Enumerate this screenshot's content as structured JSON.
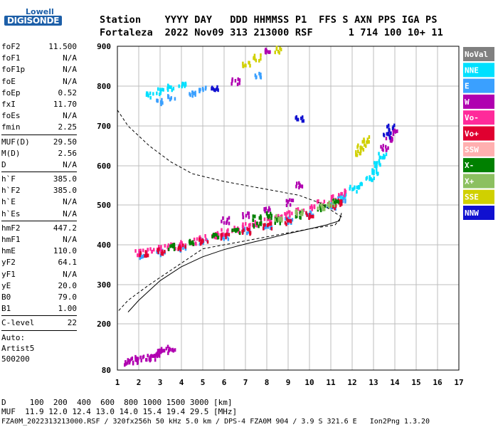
{
  "logo": {
    "line1": "Lowell",
    "line2": "DIGISONDE"
  },
  "header": {
    "line1": "Station    YYYY DAY   DDD HHMMSS P1  FFS S AXN PPS IGA PS",
    "line2": "Fortaleza  2022 Nov09 313 213000 RSF      1 714 100 10+ 11"
  },
  "params": [
    [
      {
        "k": "foF2",
        "v": "11.500"
      },
      {
        "k": "foF1",
        "v": "N/A"
      },
      {
        "k": "foF1p",
        "v": "N/A"
      },
      {
        "k": "foE",
        "v": "N/A"
      },
      {
        "k": "foEp",
        "v": "0.52"
      },
      {
        "k": "fxI",
        "v": "11.70"
      },
      {
        "k": "foEs",
        "v": "N/A"
      },
      {
        "k": "fmin",
        "v": "2.25"
      }
    ],
    [
      {
        "k": "MUF(D)",
        "v": "29.50"
      },
      {
        "k": "M(D)",
        "v": "2.56"
      },
      {
        "k": "D",
        "v": "N/A"
      }
    ],
    [
      {
        "k": "h`F",
        "v": "385.0"
      },
      {
        "k": "h`F2",
        "v": "385.0"
      },
      {
        "k": "h`E",
        "v": "N/A"
      },
      {
        "k": "h`Es",
        "v": "N/A"
      }
    ],
    [
      {
        "k": "hmF2",
        "v": "447.2"
      },
      {
        "k": "hmF1",
        "v": "N/A"
      },
      {
        "k": "hmE",
        "v": "110.0"
      },
      {
        "k": "yF2",
        "v": "64.1"
      },
      {
        "k": "yF1",
        "v": "N/A"
      },
      {
        "k": "yE",
        "v": "20.0"
      },
      {
        "k": "B0",
        "v": "79.0"
      },
      {
        "k": "B1",
        "v": "1.00"
      }
    ],
    [
      {
        "k": "C-level",
        "v": "22"
      }
    ]
  ],
  "info": [
    "Auto:",
    "Artist5",
    "500200"
  ],
  "legend": [
    {
      "label": "NoVal",
      "color": "#808080"
    },
    {
      "label": "NNE",
      "color": "#00e0ff"
    },
    {
      "label": "E",
      "color": "#3aa0ff"
    },
    {
      "label": "W",
      "color": "#b000b0"
    },
    {
      "label": "Vo-",
      "color": "#ff2a9a"
    },
    {
      "label": "Vo+",
      "color": "#e00030"
    },
    {
      "label": "SSW",
      "color": "#ffb0b0"
    },
    {
      "label": "X-",
      "color": "#008000"
    },
    {
      "label": "X+",
      "color": "#8cc060"
    },
    {
      "label": "SSE",
      "color": "#d0d000"
    },
    {
      "label": "NNW",
      "color": "#1010d0"
    }
  ],
  "footer": {
    "line1": "D     100  200  400  600  800 1000 1500 3000 [km]",
    "line2": "MUF  11.9 12.0 12.4 13.0 14.0 15.4 19.4 29.5 [MHz]",
    "line3": "FZA0M_2022313213000.RSF / 320fx256h 50 kHz 5.0 km / DPS-4 FZA0M 904 / 3.9 S 321.6 E   Ion2Png 1.3.20"
  },
  "chart_data": {
    "type": "scatter",
    "xlim": [
      1,
      17
    ],
    "ylim": [
      80,
      900
    ],
    "x_ticks": [
      "1",
      "2",
      "3",
      "4",
      "5",
      "6",
      "7",
      "8",
      "9",
      "10",
      "11",
      "12",
      "13",
      "14",
      "15",
      "16",
      "17"
    ],
    "y_ticks": [
      "80",
      "200",
      "300",
      "400",
      "500",
      "600",
      "700",
      "800",
      "900"
    ],
    "series": [
      {
        "name": "NNE",
        "points": [
          [
            11.6,
            525
          ],
          [
            12.0,
            545
          ],
          [
            12.4,
            555
          ],
          [
            12.8,
            570
          ],
          [
            13.0,
            590
          ],
          [
            13.2,
            610
          ],
          [
            13.4,
            630
          ],
          [
            2.5,
            780
          ],
          [
            3.0,
            790
          ],
          [
            3.5,
            800
          ],
          [
            4.0,
            810
          ]
        ]
      },
      {
        "name": "E",
        "points": [
          [
            2.0,
            378
          ],
          [
            3.0,
            385
          ],
          [
            4.0,
            395
          ],
          [
            5.0,
            410
          ],
          [
            6.0,
            425
          ],
          [
            7.0,
            440
          ],
          [
            8.0,
            450
          ],
          [
            9.0,
            465
          ],
          [
            10.0,
            480
          ],
          [
            11.0,
            500
          ],
          [
            11.5,
            520
          ],
          [
            3.0,
            765
          ],
          [
            3.5,
            775
          ],
          [
            4.5,
            785
          ],
          [
            5.0,
            795
          ],
          [
            7.5,
            830
          ]
        ]
      },
      {
        "name": "W",
        "points": [
          [
            1.5,
            105
          ],
          [
            1.8,
            108
          ],
          [
            2.0,
            112
          ],
          [
            2.3,
            115
          ],
          [
            2.6,
            118
          ],
          [
            2.8,
            125
          ],
          [
            3.0,
            130
          ],
          [
            3.2,
            135
          ],
          [
            3.5,
            140
          ],
          [
            6.0,
            465
          ],
          [
            7.0,
            478
          ],
          [
            8.0,
            490
          ],
          [
            9.0,
            510
          ],
          [
            9.5,
            555
          ],
          [
            13.5,
            650
          ],
          [
            13.7,
            670
          ],
          [
            13.9,
            690
          ],
          [
            6.5,
            815
          ],
          [
            8.0,
            890
          ]
        ]
      },
      {
        "name": "Vo-",
        "points": [
          [
            2.0,
            385
          ],
          [
            2.5,
            390
          ],
          [
            3.0,
            395
          ],
          [
            3.5,
            400
          ],
          [
            4.0,
            405
          ],
          [
            4.5,
            412
          ],
          [
            5.0,
            420
          ],
          [
            5.5,
            428
          ],
          [
            6.0,
            435
          ],
          [
            6.5,
            442
          ],
          [
            7.0,
            450
          ],
          [
            7.5,
            458
          ],
          [
            8.0,
            465
          ],
          [
            8.5,
            472
          ],
          [
            9.0,
            480
          ],
          [
            9.5,
            488
          ],
          [
            10.0,
            498
          ],
          [
            10.5,
            508
          ],
          [
            11.0,
            520
          ],
          [
            11.5,
            535
          ]
        ]
      },
      {
        "name": "Vo+",
        "points": [
          [
            2.2,
            380
          ],
          [
            3.0,
            388
          ],
          [
            4.0,
            398
          ],
          [
            5.0,
            412
          ],
          [
            6.0,
            425
          ],
          [
            7.0,
            438
          ],
          [
            8.0,
            450
          ],
          [
            9.0,
            462
          ],
          [
            10.0,
            478
          ],
          [
            11.0,
            500
          ],
          [
            11.5,
            510
          ]
        ]
      },
      {
        "name": "X-",
        "points": [
          [
            3.5,
            400
          ],
          [
            4.5,
            410
          ],
          [
            5.5,
            425
          ],
          [
            6.5,
            440
          ],
          [
            7.5,
            455
          ],
          [
            8.5,
            465
          ],
          [
            9.5,
            478
          ],
          [
            10.5,
            495
          ],
          [
            11.2,
            510
          ],
          [
            7.5,
            470
          ],
          [
            8.0,
            478
          ]
        ]
      },
      {
        "name": "X+",
        "points": [
          [
            8.5,
            470
          ],
          [
            9.5,
            485
          ],
          [
            10.5,
            500
          ],
          [
            11.0,
            505
          ]
        ]
      },
      {
        "name": "SSE",
        "points": [
          [
            12.2,
            635
          ],
          [
            12.4,
            650
          ],
          [
            12.6,
            670
          ],
          [
            7.0,
            860
          ],
          [
            7.5,
            875
          ],
          [
            8.5,
            895
          ]
        ]
      },
      {
        "name": "NNW",
        "points": [
          [
            13.8,
            700
          ],
          [
            13.6,
            680
          ],
          [
            5.5,
            800
          ],
          [
            9.5,
            720
          ]
        ]
      }
    ],
    "profile_solid": [
      [
        1.5,
        230
      ],
      [
        2,
        260
      ],
      [
        3,
        310
      ],
      [
        4,
        345
      ],
      [
        5,
        370
      ],
      [
        6,
        388
      ],
      [
        7,
        402
      ],
      [
        8,
        415
      ],
      [
        9,
        428
      ],
      [
        10,
        440
      ],
      [
        10.8,
        450
      ],
      [
        11.4,
        460
      ],
      [
        11.5,
        480
      ]
    ],
    "profile_dashed": [
      [
        1.0,
        740
      ],
      [
        1.5,
        700
      ],
      [
        2.5,
        650
      ],
      [
        3.5,
        610
      ],
      [
        4.5,
        580
      ],
      [
        6,
        560
      ],
      [
        8,
        540
      ],
      [
        9.5,
        525
      ],
      [
        10.5,
        505
      ],
      [
        11.5,
        470
      ],
      [
        11.2,
        450
      ],
      [
        10,
        440
      ],
      [
        5,
        390
      ],
      [
        2.5,
        300
      ],
      [
        1.5,
        260
      ],
      [
        1.0,
        230
      ]
    ]
  }
}
